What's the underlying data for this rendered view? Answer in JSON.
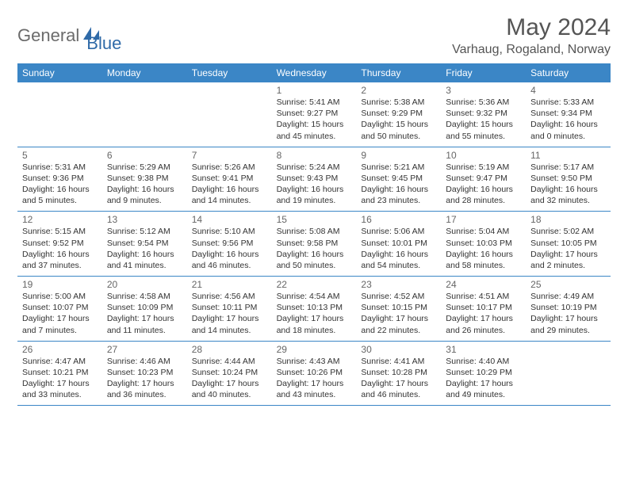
{
  "logo": {
    "part1": "General",
    "part2": "Blue"
  },
  "title": "May 2024",
  "location": "Varhaug, Rogaland, Norway",
  "colors": {
    "header_bg": "#3b86c6",
    "header_text": "#ffffff",
    "border": "#3b86c6",
    "logo_gray": "#6b6b6b",
    "logo_blue": "#2f6aa8",
    "title_color": "#555555",
    "text_color": "#333333",
    "daynum_color": "#666666",
    "background": "#ffffff"
  },
  "weekdays": [
    "Sunday",
    "Monday",
    "Tuesday",
    "Wednesday",
    "Thursday",
    "Friday",
    "Saturday"
  ],
  "weeks": [
    [
      null,
      null,
      null,
      {
        "n": "1",
        "sr": "5:41 AM",
        "ss": "9:27 PM",
        "dl": "15 hours and 45 minutes."
      },
      {
        "n": "2",
        "sr": "5:38 AM",
        "ss": "9:29 PM",
        "dl": "15 hours and 50 minutes."
      },
      {
        "n": "3",
        "sr": "5:36 AM",
        "ss": "9:32 PM",
        "dl": "15 hours and 55 minutes."
      },
      {
        "n": "4",
        "sr": "5:33 AM",
        "ss": "9:34 PM",
        "dl": "16 hours and 0 minutes."
      }
    ],
    [
      {
        "n": "5",
        "sr": "5:31 AM",
        "ss": "9:36 PM",
        "dl": "16 hours and 5 minutes."
      },
      {
        "n": "6",
        "sr": "5:29 AM",
        "ss": "9:38 PM",
        "dl": "16 hours and 9 minutes."
      },
      {
        "n": "7",
        "sr": "5:26 AM",
        "ss": "9:41 PM",
        "dl": "16 hours and 14 minutes."
      },
      {
        "n": "8",
        "sr": "5:24 AM",
        "ss": "9:43 PM",
        "dl": "16 hours and 19 minutes."
      },
      {
        "n": "9",
        "sr": "5:21 AM",
        "ss": "9:45 PM",
        "dl": "16 hours and 23 minutes."
      },
      {
        "n": "10",
        "sr": "5:19 AM",
        "ss": "9:47 PM",
        "dl": "16 hours and 28 minutes."
      },
      {
        "n": "11",
        "sr": "5:17 AM",
        "ss": "9:50 PM",
        "dl": "16 hours and 32 minutes."
      }
    ],
    [
      {
        "n": "12",
        "sr": "5:15 AM",
        "ss": "9:52 PM",
        "dl": "16 hours and 37 minutes."
      },
      {
        "n": "13",
        "sr": "5:12 AM",
        "ss": "9:54 PM",
        "dl": "16 hours and 41 minutes."
      },
      {
        "n": "14",
        "sr": "5:10 AM",
        "ss": "9:56 PM",
        "dl": "16 hours and 46 minutes."
      },
      {
        "n": "15",
        "sr": "5:08 AM",
        "ss": "9:58 PM",
        "dl": "16 hours and 50 minutes."
      },
      {
        "n": "16",
        "sr": "5:06 AM",
        "ss": "10:01 PM",
        "dl": "16 hours and 54 minutes."
      },
      {
        "n": "17",
        "sr": "5:04 AM",
        "ss": "10:03 PM",
        "dl": "16 hours and 58 minutes."
      },
      {
        "n": "18",
        "sr": "5:02 AM",
        "ss": "10:05 PM",
        "dl": "17 hours and 2 minutes."
      }
    ],
    [
      {
        "n": "19",
        "sr": "5:00 AM",
        "ss": "10:07 PM",
        "dl": "17 hours and 7 minutes."
      },
      {
        "n": "20",
        "sr": "4:58 AM",
        "ss": "10:09 PM",
        "dl": "17 hours and 11 minutes."
      },
      {
        "n": "21",
        "sr": "4:56 AM",
        "ss": "10:11 PM",
        "dl": "17 hours and 14 minutes."
      },
      {
        "n": "22",
        "sr": "4:54 AM",
        "ss": "10:13 PM",
        "dl": "17 hours and 18 minutes."
      },
      {
        "n": "23",
        "sr": "4:52 AM",
        "ss": "10:15 PM",
        "dl": "17 hours and 22 minutes."
      },
      {
        "n": "24",
        "sr": "4:51 AM",
        "ss": "10:17 PM",
        "dl": "17 hours and 26 minutes."
      },
      {
        "n": "25",
        "sr": "4:49 AM",
        "ss": "10:19 PM",
        "dl": "17 hours and 29 minutes."
      }
    ],
    [
      {
        "n": "26",
        "sr": "4:47 AM",
        "ss": "10:21 PM",
        "dl": "17 hours and 33 minutes."
      },
      {
        "n": "27",
        "sr": "4:46 AM",
        "ss": "10:23 PM",
        "dl": "17 hours and 36 minutes."
      },
      {
        "n": "28",
        "sr": "4:44 AM",
        "ss": "10:24 PM",
        "dl": "17 hours and 40 minutes."
      },
      {
        "n": "29",
        "sr": "4:43 AM",
        "ss": "10:26 PM",
        "dl": "17 hours and 43 minutes."
      },
      {
        "n": "30",
        "sr": "4:41 AM",
        "ss": "10:28 PM",
        "dl": "17 hours and 46 minutes."
      },
      {
        "n": "31",
        "sr": "4:40 AM",
        "ss": "10:29 PM",
        "dl": "17 hours and 49 minutes."
      },
      null
    ]
  ],
  "labels": {
    "sunrise": "Sunrise:",
    "sunset": "Sunset:",
    "daylight": "Daylight:"
  }
}
